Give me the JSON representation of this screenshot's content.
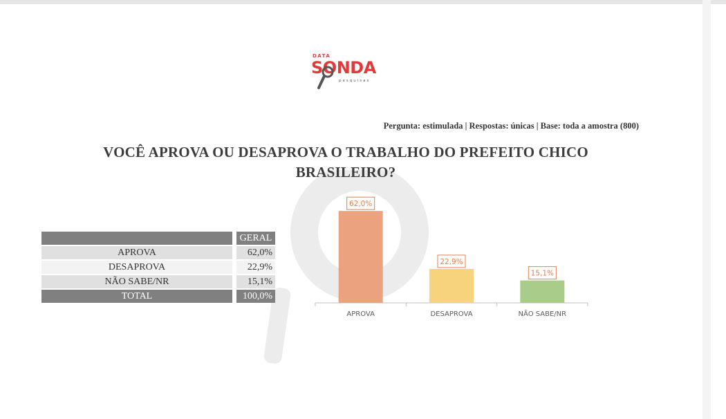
{
  "logo": {
    "top_text": "DATA",
    "brand": "SONDA",
    "sub_text": "pesquisas"
  },
  "subheader": "Pergunta: estimulada | Respostas: únicas | Base: toda a amostra (800)",
  "title_line1": "VOCÊ APROVA OU DESAPROVA O TRABALHO DO PREFEITO CHICO",
  "title_line2": "BRASILEIRO?",
  "table": {
    "header": "GERAL",
    "rows": [
      {
        "label": "APROVA",
        "value": "62,0%"
      },
      {
        "label": "DESAPROVA",
        "value": "22,9%"
      },
      {
        "label": "NÃO SABE/NR",
        "value": "15,1%"
      }
    ],
    "total": {
      "label": "TOTAL",
      "value": "100,0%"
    }
  },
  "chart_data": {
    "type": "bar",
    "categories": [
      "APROVA",
      "DESAPROVA",
      "NÃO SABE/NR"
    ],
    "values": [
      62.0,
      22.9,
      15.1
    ],
    "data_labels": [
      "62,0%",
      "22,9%",
      "15,1%"
    ],
    "colors": [
      "#eaa37e",
      "#f7d47c",
      "#a9cc8a"
    ],
    "label_border_color": "#e57e4e",
    "ylim": [
      0,
      70
    ],
    "grid": false,
    "title": "",
    "xlabel": "",
    "ylabel": ""
  }
}
